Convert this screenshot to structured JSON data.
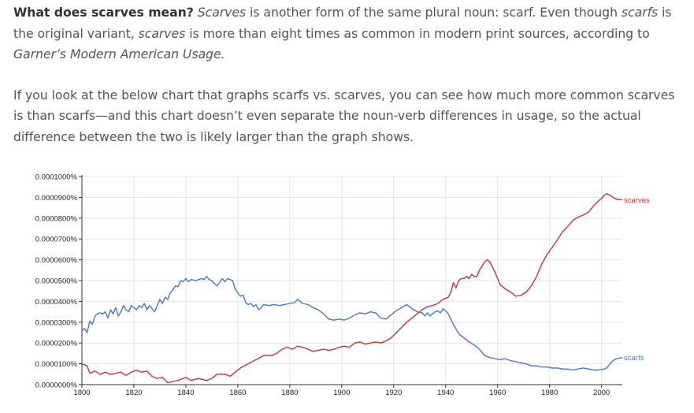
{
  "article": {
    "p1": {
      "strong": "What does scarves mean?",
      "t1": " ",
      "em1": "Scarves",
      "t2": " is another form of the same plural noun: scarf. Even though ",
      "em2": "scarfs",
      "t3": " is the original variant, ",
      "em3": "scarves",
      "t4": " is more than eight times as common in modern print sources, according to ",
      "em4": "Garner’s Modern American Usage.",
      "t5": ""
    },
    "p2": "If you look at the below chart that graphs scarfs vs. scarves, you can see how much more common scarves is than scarfs—and this chart doesn’t even separate the noun-verb differences in usage, so the actual difference between the two is likely larger than the graph shows."
  },
  "chart_data": {
    "type": "line",
    "title": "",
    "xlabel": "",
    "ylabel": "",
    "xlim": [
      1800,
      2008
    ],
    "ylim": [
      0,
      1e-06
    ],
    "xticks": [
      "1800",
      "1820",
      "1840",
      "1860",
      "1880",
      "1900",
      "1920",
      "1940",
      "1960",
      "1980",
      "2000"
    ],
    "xtick_values": [
      1800,
      1820,
      1840,
      1860,
      1880,
      1900,
      1920,
      1940,
      1960,
      1980,
      2000
    ],
    "yticks": [
      "0.0000000%",
      "0.0000100%",
      "0.0000200%",
      "0.0000300%",
      "0.0000400%",
      "0.0000500%",
      "0.0000600%",
      "0.0000700%",
      "0.0000800%",
      "0.0000900%",
      "0.0001000%"
    ],
    "grid": true,
    "legend": "labels at line ends (right)",
    "series": [
      {
        "name": "scarves",
        "color": "#cc3333",
        "points": [
          [
            1800,
            1e-07
          ],
          [
            1802,
            9e-08
          ],
          [
            1803,
            5.5e-08
          ],
          [
            1805,
            6.5e-08
          ],
          [
            1807,
            5e-08
          ],
          [
            1809,
            6e-08
          ],
          [
            1811,
            5e-08
          ],
          [
            1813,
            5.5e-08
          ],
          [
            1815,
            6e-08
          ],
          [
            1817,
            4.5e-08
          ],
          [
            1819,
            6e-08
          ],
          [
            1821,
            7e-08
          ],
          [
            1823,
            6e-08
          ],
          [
            1825,
            6.5e-08
          ],
          [
            1827,
            4e-08
          ],
          [
            1829,
            3e-08
          ],
          [
            1831,
            3.5e-08
          ],
          [
            1833,
            1e-08
          ],
          [
            1835,
            1.5e-08
          ],
          [
            1837,
            2e-08
          ],
          [
            1840,
            3.5e-08
          ],
          [
            1842,
            2e-08
          ],
          [
            1845,
            3e-08
          ],
          [
            1848,
            2e-08
          ],
          [
            1850,
            3e-08
          ],
          [
            1852,
            5e-08
          ],
          [
            1855,
            5e-08
          ],
          [
            1857,
            4e-08
          ],
          [
            1859,
            6e-08
          ],
          [
            1861,
            8e-08
          ],
          [
            1864,
            1e-07
          ],
          [
            1867,
            1.2e-07
          ],
          [
            1870,
            1.4e-07
          ],
          [
            1873,
            1.4e-07
          ],
          [
            1875,
            1.5e-07
          ],
          [
            1877,
            1.7e-07
          ],
          [
            1879,
            1.8e-07
          ],
          [
            1881,
            1.7e-07
          ],
          [
            1883,
            1.85e-07
          ],
          [
            1885,
            1.8e-07
          ],
          [
            1887,
            1.7e-07
          ],
          [
            1889,
            1.6e-07
          ],
          [
            1891,
            1.65e-07
          ],
          [
            1893,
            1.7e-07
          ],
          [
            1895,
            1.65e-07
          ],
          [
            1897,
            1.7e-07
          ],
          [
            1899,
            1.8e-07
          ],
          [
            1901,
            1.85e-07
          ],
          [
            1903,
            1.8e-07
          ],
          [
            1905,
            2e-07
          ],
          [
            1907,
            2.05e-07
          ],
          [
            1909,
            1.95e-07
          ],
          [
            1911,
            2e-07
          ],
          [
            1913,
            2.05e-07
          ],
          [
            1915,
            2e-07
          ],
          [
            1917,
            2.1e-07
          ],
          [
            1919,
            2.25e-07
          ],
          [
            1921,
            2.5e-07
          ],
          [
            1923,
            2.75e-07
          ],
          [
            1925,
            3e-07
          ],
          [
            1927,
            3.2e-07
          ],
          [
            1929,
            3.4e-07
          ],
          [
            1931,
            3.6e-07
          ],
          [
            1933,
            3.75e-07
          ],
          [
            1935,
            3.8e-07
          ],
          [
            1937,
            3.9e-07
          ],
          [
            1939,
            4.1e-07
          ],
          [
            1941,
            4.2e-07
          ],
          [
            1942,
            4.45e-07
          ],
          [
            1943,
            4.9e-07
          ],
          [
            1944,
            4.65e-07
          ],
          [
            1945,
            5e-07
          ],
          [
            1946,
            5.1e-07
          ],
          [
            1947,
            5.1e-07
          ],
          [
            1948,
            5.2e-07
          ],
          [
            1949,
            5.1e-07
          ],
          [
            1950,
            5.3e-07
          ],
          [
            1951,
            5.2e-07
          ],
          [
            1952,
            5.2e-07
          ],
          [
            1953,
            5.5e-07
          ],
          [
            1954,
            5.7e-07
          ],
          [
            1955,
            5.9e-07
          ],
          [
            1956,
            6e-07
          ],
          [
            1957,
            5.9e-07
          ],
          [
            1958,
            5.65e-07
          ],
          [
            1959,
            5.4e-07
          ],
          [
            1960,
            5.1e-07
          ],
          [
            1961,
            4.8e-07
          ],
          [
            1963,
            4.6e-07
          ],
          [
            1965,
            4.45e-07
          ],
          [
            1967,
            4.25e-07
          ],
          [
            1969,
            4.3e-07
          ],
          [
            1971,
            4.45e-07
          ],
          [
            1973,
            4.75e-07
          ],
          [
            1975,
            5.2e-07
          ],
          [
            1977,
            5.8e-07
          ],
          [
            1979,
            6.25e-07
          ],
          [
            1981,
            6.6e-07
          ],
          [
            1983,
            6.95e-07
          ],
          [
            1985,
            7.35e-07
          ],
          [
            1987,
            7.6e-07
          ],
          [
            1989,
            7.9e-07
          ],
          [
            1991,
            8.05e-07
          ],
          [
            1993,
            8.15e-07
          ],
          [
            1995,
            8.3e-07
          ],
          [
            1997,
            8.6e-07
          ],
          [
            1999,
            8.85e-07
          ],
          [
            2000,
            8.95e-07
          ],
          [
            2001,
            9.1e-07
          ],
          [
            2002,
            9.18e-07
          ],
          [
            2003,
            9.12e-07
          ],
          [
            2004,
            9.05e-07
          ],
          [
            2005,
            8.95e-07
          ],
          [
            2006,
            8.9e-07
          ],
          [
            2008,
            8.88e-07
          ]
        ]
      },
      {
        "name": "scarfs",
        "color": "#4a74cf",
        "points": [
          [
            1800,
            2.6e-07
          ],
          [
            1801,
            2.7e-07
          ],
          [
            1802,
            2.5e-07
          ],
          [
            1803,
            3.05e-07
          ],
          [
            1804,
            2.9e-07
          ],
          [
            1805,
            3.3e-07
          ],
          [
            1806,
            3.4e-07
          ],
          [
            1807,
            3.45e-07
          ],
          [
            1808,
            3.4e-07
          ],
          [
            1809,
            3.5e-07
          ],
          [
            1810,
            3.2e-07
          ],
          [
            1811,
            3.6e-07
          ],
          [
            1812,
            3.4e-07
          ],
          [
            1813,
            3.7e-07
          ],
          [
            1814,
            3.3e-07
          ],
          [
            1815,
            3.5e-07
          ],
          [
            1816,
            3.8e-07
          ],
          [
            1817,
            3.6e-07
          ],
          [
            1818,
            3.5e-07
          ],
          [
            1819,
            3.8e-07
          ],
          [
            1820,
            3.7e-07
          ],
          [
            1821,
            3.6e-07
          ],
          [
            1822,
            3.8e-07
          ],
          [
            1823,
            3.7e-07
          ],
          [
            1824,
            3.9e-07
          ],
          [
            1825,
            3.6e-07
          ],
          [
            1826,
            3.8e-07
          ],
          [
            1827,
            3.65e-07
          ],
          [
            1828,
            3.5e-07
          ],
          [
            1829,
            3.8e-07
          ],
          [
            1830,
            4.1e-07
          ],
          [
            1831,
            3.9e-07
          ],
          [
            1832,
            4.2e-07
          ],
          [
            1833,
            4.1e-07
          ],
          [
            1834,
            4.4e-07
          ],
          [
            1835,
            4.55e-07
          ],
          [
            1836,
            4.75e-07
          ],
          [
            1837,
            4.7e-07
          ],
          [
            1838,
            5e-07
          ],
          [
            1839,
            4.95e-07
          ],
          [
            1840,
            5.1e-07
          ],
          [
            1841,
            4.95e-07
          ],
          [
            1842,
            5.05e-07
          ],
          [
            1844,
            5e-07
          ],
          [
            1846,
            5.1e-07
          ],
          [
            1847,
            5.05e-07
          ],
          [
            1848,
            5.2e-07
          ],
          [
            1849,
            5.05e-07
          ],
          [
            1850,
            5e-07
          ],
          [
            1851,
            4.85e-07
          ],
          [
            1852,
            4.75e-07
          ],
          [
            1853,
            4.9e-07
          ],
          [
            1854,
            5.1e-07
          ],
          [
            1855,
            4.95e-07
          ],
          [
            1856,
            5.1e-07
          ],
          [
            1857,
            5.05e-07
          ],
          [
            1858,
            5e-07
          ],
          [
            1859,
            4.6e-07
          ],
          [
            1860,
            4.4e-07
          ],
          [
            1861,
            4.25e-07
          ],
          [
            1862,
            4.3e-07
          ],
          [
            1863,
            3.95e-07
          ],
          [
            1864,
            3.85e-07
          ],
          [
            1865,
            3.9e-07
          ],
          [
            1866,
            3.75e-07
          ],
          [
            1867,
            3.85e-07
          ],
          [
            1868,
            3.6e-07
          ],
          [
            1869,
            3.7e-07
          ],
          [
            1870,
            3.85e-07
          ],
          [
            1872,
            3.8e-07
          ],
          [
            1874,
            3.85e-07
          ],
          [
            1876,
            3.8e-07
          ],
          [
            1878,
            3.85e-07
          ],
          [
            1880,
            3.9e-07
          ],
          [
            1882,
            3.95e-07
          ],
          [
            1883,
            4.1e-07
          ],
          [
            1884,
            4e-07
          ],
          [
            1885,
            3.9e-07
          ],
          [
            1887,
            3.85e-07
          ],
          [
            1889,
            3.7e-07
          ],
          [
            1891,
            3.6e-07
          ],
          [
            1893,
            3.4e-07
          ],
          [
            1895,
            3.15e-07
          ],
          [
            1897,
            3.1e-07
          ],
          [
            1899,
            3.15e-07
          ],
          [
            1901,
            3.1e-07
          ],
          [
            1903,
            3.2e-07
          ],
          [
            1905,
            3.35e-07
          ],
          [
            1907,
            3.45e-07
          ],
          [
            1909,
            3.4e-07
          ],
          [
            1911,
            3.5e-07
          ],
          [
            1913,
            3.45e-07
          ],
          [
            1915,
            3.2e-07
          ],
          [
            1917,
            3.15e-07
          ],
          [
            1919,
            3.35e-07
          ],
          [
            1921,
            3.55e-07
          ],
          [
            1923,
            3.7e-07
          ],
          [
            1925,
            3.85e-07
          ],
          [
            1927,
            3.65e-07
          ],
          [
            1929,
            3.5e-07
          ],
          [
            1931,
            3.45e-07
          ],
          [
            1932,
            3.3e-07
          ],
          [
            1933,
            3.45e-07
          ],
          [
            1934,
            3.3e-07
          ],
          [
            1935,
            3.4e-07
          ],
          [
            1936,
            3.5e-07
          ],
          [
            1937,
            3.55e-07
          ],
          [
            1938,
            3.45e-07
          ],
          [
            1939,
            3.65e-07
          ],
          [
            1940,
            3.55e-07
          ],
          [
            1941,
            3.4e-07
          ],
          [
            1942,
            3.15e-07
          ],
          [
            1943,
            2.9e-07
          ],
          [
            1945,
            2.45e-07
          ],
          [
            1947,
            2.25e-07
          ],
          [
            1949,
            2.05e-07
          ],
          [
            1951,
            1.9e-07
          ],
          [
            1953,
            1.7e-07
          ],
          [
            1955,
            1.4e-07
          ],
          [
            1957,
            1.3e-07
          ],
          [
            1959,
            1.25e-07
          ],
          [
            1961,
            1.2e-07
          ],
          [
            1963,
            1.25e-07
          ],
          [
            1965,
            1.15e-07
          ],
          [
            1967,
            1.1e-07
          ],
          [
            1969,
            1.05e-07
          ],
          [
            1971,
            1e-07
          ],
          [
            1973,
            9e-08
          ],
          [
            1975,
            9e-08
          ],
          [
            1977,
            8.5e-08
          ],
          [
            1979,
            8.5e-08
          ],
          [
            1981,
            8e-08
          ],
          [
            1983,
            8e-08
          ],
          [
            1985,
            7.5e-08
          ],
          [
            1987,
            7.5e-08
          ],
          [
            1989,
            7e-08
          ],
          [
            1991,
            7.5e-08
          ],
          [
            1993,
            8e-08
          ],
          [
            1995,
            7.5e-08
          ],
          [
            1997,
            7e-08
          ],
          [
            1999,
            7e-08
          ],
          [
            2001,
            7.5e-08
          ],
          [
            2002,
            8e-08
          ],
          [
            2003,
            9.5e-08
          ],
          [
            2004,
            1.1e-07
          ],
          [
            2005,
            1.2e-07
          ],
          [
            2006,
            1.25e-07
          ],
          [
            2008,
            1.3e-07
          ]
        ]
      }
    ]
  }
}
